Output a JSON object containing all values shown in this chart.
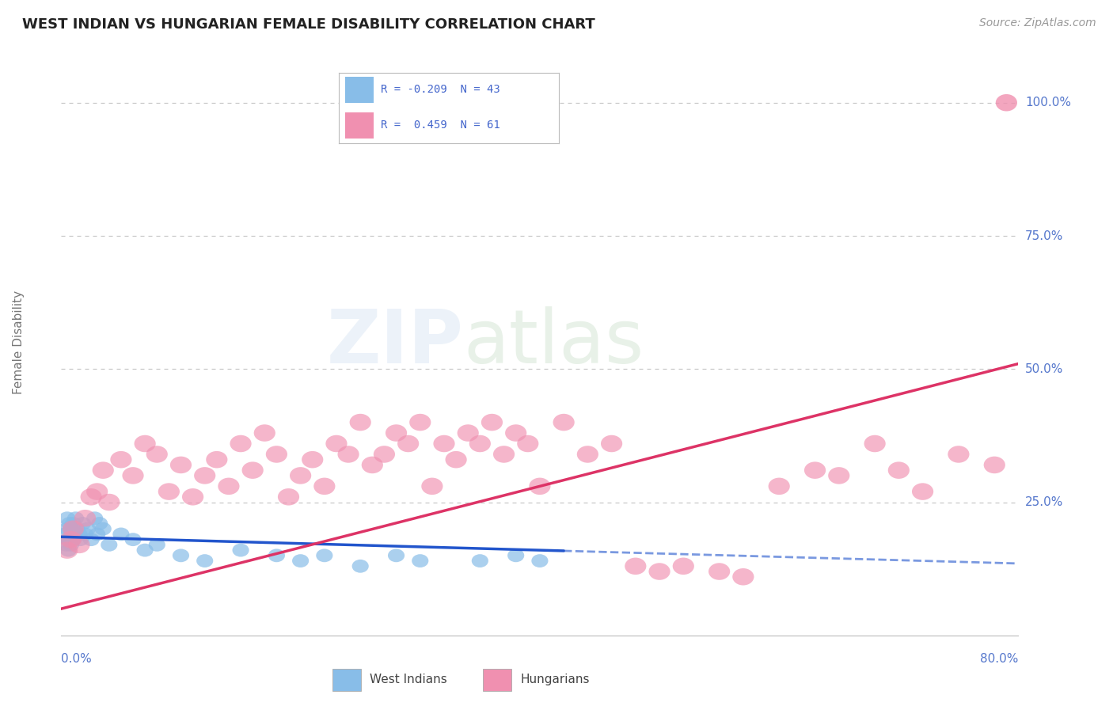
{
  "title": "WEST INDIAN VS HUNGARIAN FEMALE DISABILITY CORRELATION CHART",
  "source": "Source: ZipAtlas.com",
  "ylabel_label": "Female Disability",
  "ytick_labels": [
    "100.0%",
    "75.0%",
    "50.0%",
    "25.0%"
  ],
  "ytick_values": [
    100,
    75,
    50,
    25
  ],
  "xlim": [
    0,
    80
  ],
  "ylim": [
    0,
    110
  ],
  "west_indian_R": -0.209,
  "west_indian_N": 43,
  "hungarian_R": 0.459,
  "hungarian_N": 61,
  "west_indian_color": "#88bde8",
  "hungarian_color": "#f090b0",
  "west_indian_line_color": "#2255cc",
  "hungarian_line_color": "#dd3366",
  "background_color": "#ffffff",
  "grid_color": "#c8c8c8",
  "axis_label_color": "#5577cc",
  "title_color": "#222222",
  "ylabel_color": "#777777",
  "source_color": "#999999",
  "wi_line_start_x": 0,
  "wi_line_start_y": 18.5,
  "wi_line_end_x": 80,
  "wi_line_end_y": 13.5,
  "wi_solid_end_x": 42,
  "hu_line_start_x": 0,
  "hu_line_start_y": 5,
  "hu_line_end_x": 80,
  "hu_line_end_y": 51,
  "single_point_x": 79,
  "single_point_y": 100,
  "west_indian_x": [
    0.3,
    0.4,
    0.5,
    0.5,
    0.6,
    0.6,
    0.7,
    0.7,
    0.8,
    0.8,
    0.9,
    1.0,
    1.0,
    1.1,
    1.2,
    1.3,
    1.5,
    1.6,
    1.8,
    2.0,
    2.2,
    2.5,
    2.8,
    3.0,
    3.2,
    3.5,
    4.0,
    5.0,
    6.0,
    7.0,
    8.0,
    10.0,
    12.0,
    15.0,
    18.0,
    20.0,
    22.0,
    25.0,
    28.0,
    30.0,
    35.0,
    38.0,
    40.0
  ],
  "west_indian_y": [
    19,
    17,
    20,
    22,
    18,
    16,
    21,
    18,
    20,
    17,
    19,
    18,
    21,
    19,
    22,
    20,
    19,
    18,
    21,
    19,
    20,
    18,
    22,
    19,
    21,
    20,
    17,
    19,
    18,
    16,
    17,
    15,
    14,
    16,
    15,
    14,
    15,
    13,
    15,
    14,
    14,
    15,
    14
  ],
  "hungarian_x": [
    0.5,
    0.8,
    1.0,
    1.5,
    2.0,
    2.5,
    3.0,
    3.5,
    4.0,
    5.0,
    6.0,
    7.0,
    8.0,
    9.0,
    10.0,
    11.0,
    12.0,
    13.0,
    14.0,
    15.0,
    16.0,
    17.0,
    18.0,
    19.0,
    20.0,
    21.0,
    22.0,
    23.0,
    24.0,
    25.0,
    26.0,
    27.0,
    28.0,
    29.0,
    30.0,
    31.0,
    32.0,
    33.0,
    34.0,
    35.0,
    36.0,
    37.0,
    38.0,
    39.0,
    40.0,
    42.0,
    44.0,
    46.0,
    48.0,
    50.0,
    52.0,
    55.0,
    57.0,
    60.0,
    63.0,
    65.0,
    68.0,
    70.0,
    72.0,
    75.0,
    78.0
  ],
  "hungarian_y": [
    16,
    18,
    20,
    17,
    22,
    26,
    27,
    31,
    25,
    33,
    30,
    36,
    34,
    27,
    32,
    26,
    30,
    33,
    28,
    36,
    31,
    38,
    34,
    26,
    30,
    33,
    28,
    36,
    34,
    40,
    32,
    34,
    38,
    36,
    40,
    28,
    36,
    33,
    38,
    36,
    40,
    34,
    38,
    36,
    28,
    40,
    34,
    36,
    13,
    12,
    13,
    12,
    11,
    28,
    31,
    30,
    36,
    31,
    27,
    34,
    32
  ]
}
